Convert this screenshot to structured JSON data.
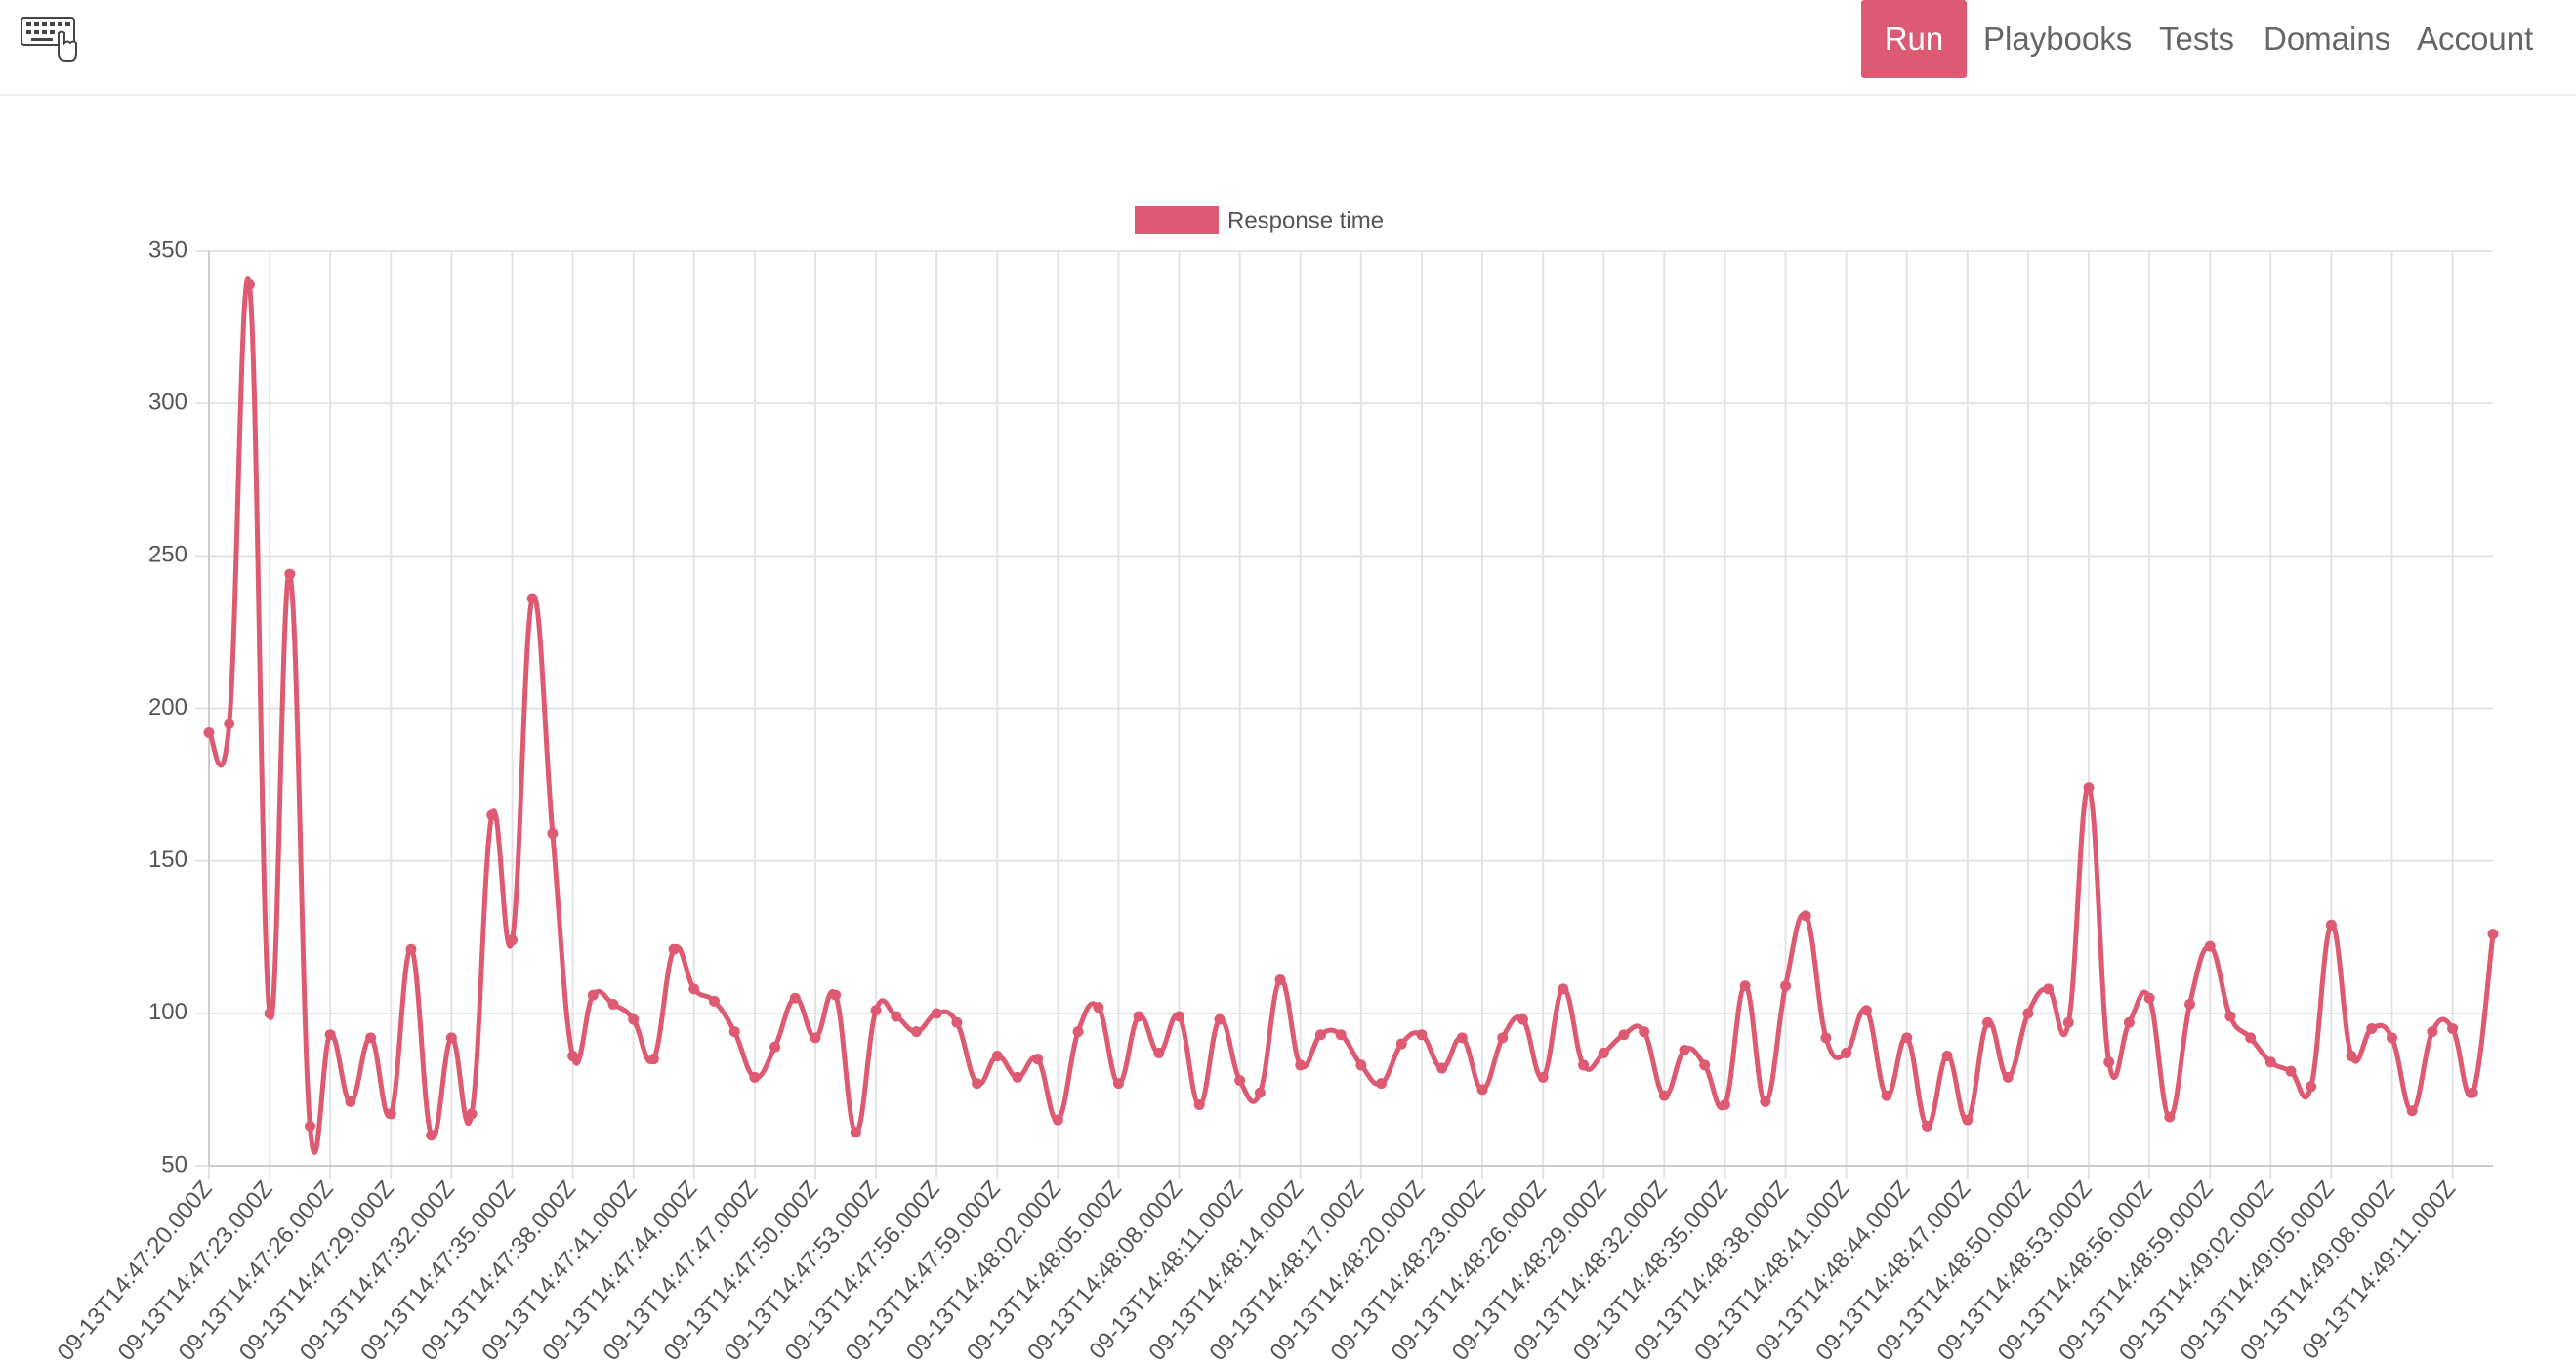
{
  "nav": {
    "items": [
      "Run",
      "Playbooks",
      "Tests",
      "Domains",
      "Account"
    ]
  },
  "chart_data": {
    "type": "line",
    "categories": [
      "09-13T14:47:20.000Z",
      null,
      null,
      "09-13T14:47:23.000Z",
      null,
      null,
      "09-13T14:47:26.000Z",
      null,
      null,
      "09-13T14:47:29.000Z",
      null,
      null,
      "09-13T14:47:32.000Z",
      null,
      null,
      "09-13T14:47:35.000Z",
      null,
      null,
      "09-13T14:47:38.000Z",
      null,
      null,
      "09-13T14:47:41.000Z",
      null,
      null,
      "09-13T14:47:44.000Z",
      null,
      null,
      "09-13T14:47:47.000Z",
      null,
      null,
      "09-13T14:47:50.000Z",
      null,
      null,
      "09-13T14:47:53.000Z",
      null,
      null,
      "09-13T14:47:56.000Z",
      null,
      null,
      "09-13T14:47:59.000Z",
      null,
      null,
      "09-13T14:48:02.000Z",
      null,
      null,
      "09-13T14:48:05.000Z",
      null,
      null,
      "09-13T14:48:08.000Z",
      null,
      null,
      "09-13T14:48:11.000Z",
      null,
      null,
      "09-13T14:48:14.000Z",
      null,
      null,
      "09-13T14:48:17.000Z",
      null,
      null,
      "09-13T14:48:20.000Z",
      null,
      null,
      "09-13T14:48:23.000Z",
      null,
      null,
      "09-13T14:48:26.000Z",
      null,
      null,
      "09-13T14:48:29.000Z",
      null,
      null,
      "09-13T14:48:32.000Z",
      null,
      null,
      "09-13T14:48:35.000Z",
      null,
      null,
      "09-13T14:48:38.000Z",
      null,
      null,
      "09-13T14:48:41.000Z",
      null,
      null,
      "09-13T14:48:44.000Z",
      null,
      null,
      "09-13T14:48:47.000Z",
      null,
      null,
      "09-13T14:48:50.000Z",
      null,
      null,
      "09-13T14:48:53.000Z",
      null,
      null,
      "09-13T14:48:56.000Z",
      null,
      null,
      "09-13T14:48:59.000Z",
      null,
      null,
      "09-13T14:49:02.000Z",
      null,
      null,
      "09-13T14:49:05.000Z",
      null,
      null,
      "09-13T14:49:08.000Z",
      null,
      null,
      "09-13T14:49:11.000Z",
      null,
      null
    ],
    "series": [
      {
        "name": "Response time",
        "color": "#dd5a72",
        "values": [
          192,
          195,
          339,
          100,
          244,
          63,
          93,
          71,
          92,
          67,
          121,
          60,
          92,
          67,
          165,
          124,
          236,
          159,
          86,
          106,
          103,
          98,
          85,
          121,
          108,
          104,
          94,
          79,
          89,
          105,
          92,
          106,
          61,
          101,
          99,
          94,
          100,
          97,
          77,
          86,
          79,
          85,
          65,
          94,
          102,
          77,
          99,
          87,
          99,
          70,
          98,
          78,
          74,
          111,
          83,
          93,
          93,
          83,
          77,
          90,
          93,
          82,
          92,
          75,
          92,
          98,
          79,
          108,
          83,
          87,
          93,
          94,
          73,
          88,
          83,
          70,
          109,
          71,
          109,
          132,
          92,
          87,
          101,
          73,
          92,
          63,
          86,
          65,
          97,
          79,
          100,
          108,
          97,
          174,
          84,
          97,
          105,
          66,
          103,
          122,
          99,
          92,
          84,
          81,
          76,
          129,
          86,
          95,
          92,
          68,
          94,
          95,
          74,
          126
        ]
      }
    ],
    "ylim": [
      50,
      350
    ],
    "yticks": [
      50,
      100,
      150,
      200,
      250,
      300,
      350
    ],
    "grid": true
  }
}
